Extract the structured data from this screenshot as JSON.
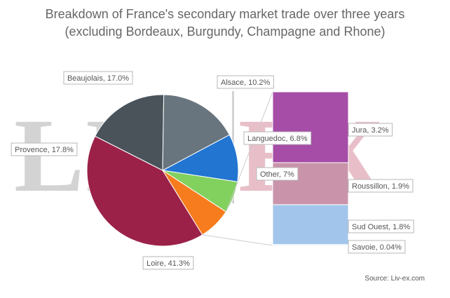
{
  "title_lines": [
    "Breakdown of France's secondary market trade over three years",
    "(excluding Bordeaux, Burgundy, Champagne and Rhone)"
  ],
  "watermark": {
    "left": "LIV",
    "right": "EX",
    "left_color": "#d3d3d3",
    "right_color": "#e8bfc9"
  },
  "source": "Source: Liv-ex.com",
  "chart_data": {
    "type": "pie",
    "title": "Breakdown of France's secondary market trade over three years (excluding Bordeaux, Burgundy, Champagne and Rhone)",
    "slices": [
      {
        "name": "Alsace",
        "value": 10.2,
        "label": "Alsace, 10.2%",
        "color": "#2275d1"
      },
      {
        "name": "Languedoc",
        "value": 6.8,
        "label": "Languedoc, 6.8%",
        "color": "#82d05e"
      },
      {
        "name": "Other",
        "value": 7,
        "label": "Other, 7%",
        "color": "#f77c1e"
      },
      {
        "name": "Loire",
        "value": 41.3,
        "label": "Loire, 41.3%",
        "color": "#9b2149"
      },
      {
        "name": "Provence",
        "value": 17.8,
        "label": "Provence, 17.8%",
        "color": "#4a535a"
      },
      {
        "name": "Beaujolais",
        "value": 17.0,
        "label": "Beaujolais, 17.0%",
        "color": "#69757e"
      }
    ],
    "breakdown": {
      "of": "Other",
      "type": "stacked-bar",
      "segments": [
        {
          "name": "Jura",
          "value": 3.2,
          "label": "Jura, 3.2%",
          "color": "#a64da8"
        },
        {
          "name": "Roussillon",
          "value": 1.9,
          "label": "Roussillon, 1.9%",
          "color": "#c994aa"
        },
        {
          "name": "Sud Ouest",
          "value": 1.8,
          "label": "Sud Ouest, 1.8%",
          "color": "#a2c5eb"
        },
        {
          "name": "Savoie",
          "value": 0.04,
          "label": "Savoie, 0.04%",
          "color": "#a2c5eb"
        }
      ]
    },
    "legend": "none"
  }
}
